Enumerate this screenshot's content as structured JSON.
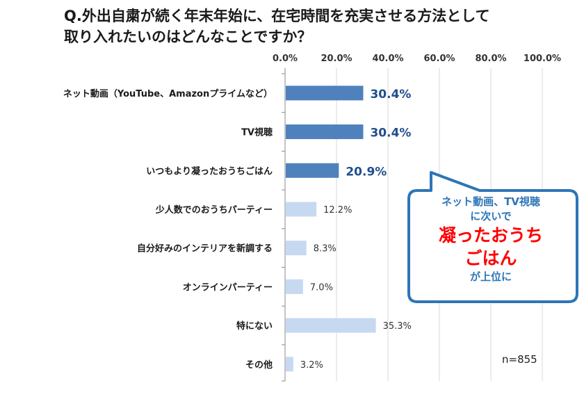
{
  "chart_data": {
    "type": "bar",
    "orientation": "horizontal",
    "title": "Q.外出自粛が続く年末年始に、在宅時間を充実させる方法として取り入れたいのはどんなことですか？",
    "title_lines": [
      "Q.外出自粛が続く年末年始に、在宅時間を充実させる方法として",
      "取り入れたいのはどんなことですか？"
    ],
    "categories": [
      "ネット動画（YouTube、Amazonプライムなど）",
      "TV視聴",
      "いつもより凝ったおうちごはん",
      "少人数でのおうちパーティー",
      "自分好みのインテリアを新調する",
      "オンラインパーティー",
      "特にない",
      "その他"
    ],
    "values": [
      30.4,
      30.4,
      20.9,
      12.2,
      8.3,
      7.0,
      35.3,
      3.2
    ],
    "value_labels": [
      "30.4%",
      "30.4%",
      "20.9%",
      "12.2%",
      "8.3%",
      "7.0%",
      "35.3%",
      "3.2%"
    ],
    "highlighted": [
      true,
      true,
      true,
      false,
      false,
      false,
      false,
      false
    ],
    "xlim": [
      0,
      100
    ],
    "x_ticks": [
      0,
      20,
      40,
      60,
      80,
      100
    ],
    "x_tick_labels": [
      "0.0%",
      "20.0%",
      "40.0%",
      "60.0%",
      "80.0%",
      "100.0%"
    ],
    "axis_position": "top",
    "grid": true,
    "colors": {
      "highlight": "#4f81bd",
      "normal": "#c6d9f1",
      "highlight_label": "#1f4e8c",
      "normal_label": "#333333",
      "grid": "#d9d9d9"
    }
  },
  "callout": {
    "line1": "ネット動画、TV視聴",
    "line2": "に次いで",
    "emph1": "凝ったおうち",
    "emph2": "ごはん",
    "line3": "が上位に",
    "colors": {
      "border": "#2e75b6",
      "text": "#2e75b6",
      "emphasis": "#ff0000"
    }
  },
  "sample_size": "n=855"
}
